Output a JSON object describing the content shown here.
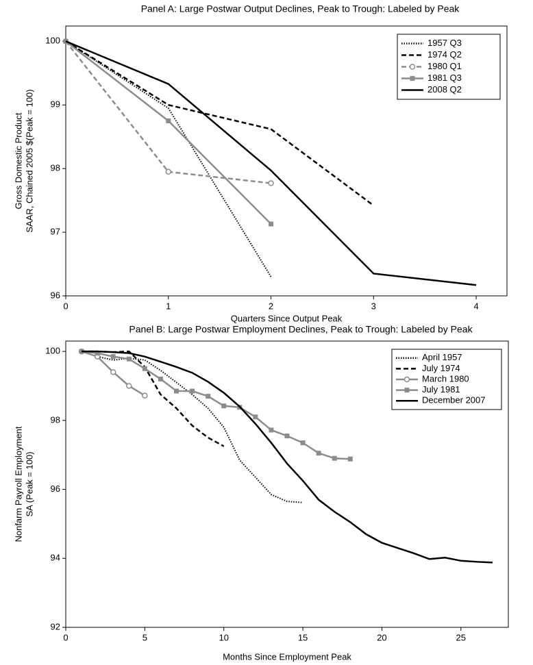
{
  "chart_data": [
    {
      "type": "line",
      "title": "Panel A: Large Postwar Output Declines, Peak to Trough: Labeled by Peak",
      "xlabel": "Quarters Since Output Peak",
      "ylabel": [
        "Gross Domestic Product",
        "SAAR, Chained 2005 $(Peak = 100)"
      ],
      "xlim": [
        0,
        4.3
      ],
      "xticks": [
        0,
        1,
        2,
        3,
        4
      ],
      "ylim": [
        96,
        100.24
      ],
      "yticks": [
        96,
        97,
        98,
        99,
        100
      ],
      "legend": "upper right",
      "series": [
        {
          "name": "1957 Q3",
          "color": "#000000",
          "line_style": "dotted",
          "x": [
            0,
            1,
            2
          ],
          "values": [
            100,
            98.95,
            96.3
          ]
        },
        {
          "name": "1974 Q2",
          "color": "#000000",
          "line_style": "dashed",
          "x": [
            0,
            1,
            2,
            3
          ],
          "values": [
            100,
            99.0,
            98.62,
            97.42
          ]
        },
        {
          "name": "1980 Q1",
          "color": "#8c8c8c",
          "line_style": "dashed",
          "marker": "circle",
          "x": [
            0,
            1,
            2
          ],
          "values": [
            100,
            97.95,
            97.77
          ]
        },
        {
          "name": "1981 Q3",
          "color": "#8c8c8c",
          "line_style": "solid",
          "marker": "square",
          "x": [
            0,
            1,
            2
          ],
          "values": [
            100,
            98.75,
            97.13
          ]
        },
        {
          "name": "2008 Q2",
          "color": "#000000",
          "line_style": "solid",
          "x": [
            0,
            1,
            2,
            3,
            4
          ],
          "values": [
            100,
            99.33,
            97.97,
            96.35,
            96.17
          ]
        }
      ]
    },
    {
      "type": "line",
      "title": "Panel B: Large Postwar Employment Declines, Peak to Trough: Labeled by Peak",
      "xlabel": "Months Since Employment Peak",
      "ylabel": [
        "Nonfarm Payroll Employment",
        "SA (Peak = 100)"
      ],
      "xlim": [
        0,
        28
      ],
      "xticks": [
        0,
        5,
        10,
        15,
        20,
        25
      ],
      "ylim": [
        92,
        100.3
      ],
      "yticks": [
        92,
        94,
        96,
        98,
        100
      ],
      "legend": "upper right",
      "series": [
        {
          "name": "April 1957",
          "color": "#000000",
          "line_style": "dotted",
          "x": [
            1,
            2,
            3,
            4,
            5,
            6,
            7,
            8,
            9,
            10,
            11,
            12,
            13,
            14,
            15
          ],
          "values": [
            100,
            99.85,
            99.75,
            99.8,
            99.75,
            99.45,
            99.1,
            98.75,
            98.35,
            97.8,
            96.85,
            96.35,
            95.85,
            95.65,
            95.62
          ]
        },
        {
          "name": "July 1974",
          "color": "#000000",
          "line_style": "dashed",
          "x": [
            1,
            2,
            3,
            4,
            5,
            6,
            7,
            8,
            9,
            10
          ],
          "values": [
            100,
            100,
            99.98,
            100,
            99.55,
            98.75,
            98.35,
            97.85,
            97.5,
            97.25
          ]
        },
        {
          "name": "March 1980",
          "color": "#8c8c8c",
          "line_style": "solid",
          "marker": "circle",
          "x": [
            1,
            2,
            3,
            4,
            5
          ],
          "values": [
            100,
            99.85,
            99.4,
            99.0,
            98.72
          ]
        },
        {
          "name": "July 1981",
          "color": "#8c8c8c",
          "line_style": "solid",
          "marker": "square",
          "x": [
            1,
            2,
            3,
            4,
            5,
            6,
            7,
            8,
            9,
            10,
            11,
            12,
            13,
            14,
            15,
            16,
            17,
            18
          ],
          "values": [
            100,
            99.95,
            99.85,
            99.78,
            99.5,
            99.2,
            98.85,
            98.85,
            98.7,
            98.42,
            98.38,
            98.1,
            97.72,
            97.55,
            97.35,
            97.05,
            96.9,
            96.88
          ]
        },
        {
          "name": "December 2007",
          "color": "#000000",
          "line_style": "solid",
          "x": [
            1,
            2,
            3,
            4,
            5,
            6,
            7,
            8,
            9,
            10,
            11,
            12,
            13,
            14,
            15,
            16,
            17,
            18,
            19,
            20,
            21,
            22,
            23,
            24,
            25,
            26,
            27
          ],
          "values": [
            100,
            100,
            99.98,
            99.95,
            99.85,
            99.7,
            99.55,
            99.38,
            99.12,
            98.8,
            98.4,
            97.9,
            97.35,
            96.75,
            96.25,
            95.7,
            95.35,
            95.05,
            94.7,
            94.45,
            94.3,
            94.15,
            93.98,
            94.02,
            93.93,
            93.9,
            93.88
          ]
        }
      ]
    }
  ]
}
